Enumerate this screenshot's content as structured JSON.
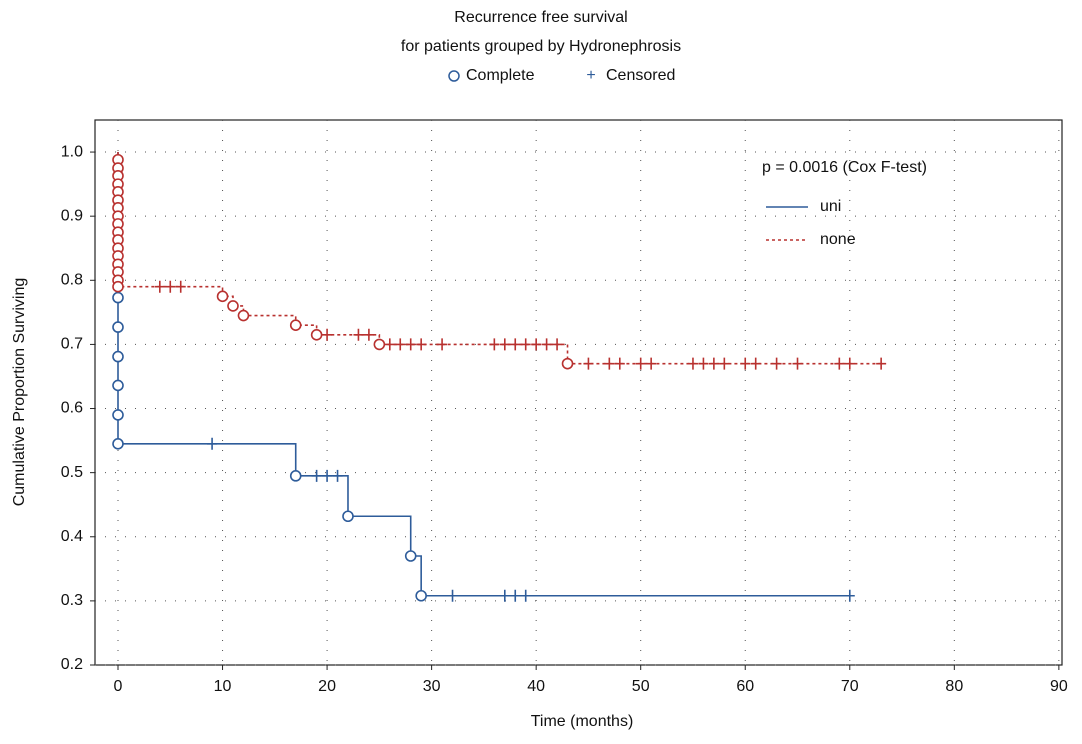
{
  "chart_data": {
    "type": "survival",
    "title": "Recurrence free survival",
    "subtitle": "for patients grouped by Hydronephrosis",
    "marker_legend": [
      "Complete",
      "Censored"
    ],
    "annotation": "p = 0.0016 (Cox F-test)",
    "x_label": "Time (months)",
    "y_label": "Cumulative Proportion Surviving",
    "xlim": [
      -2.2,
      90.3
    ],
    "ylim": [
      0.2,
      1.05
    ],
    "xticks": [
      0,
      10,
      20,
      30,
      40,
      50,
      60,
      70,
      80,
      90
    ],
    "yticks": [
      0.2,
      0.3,
      0.4,
      0.5,
      0.6,
      0.7,
      0.8,
      0.9,
      {
        "value": 1,
        "label": "1.0"
      }
    ],
    "grid": true,
    "series": [
      {
        "name": "uni",
        "color": "#2e5c9a",
        "dash": false,
        "x": [
          0,
          0,
          17,
          17,
          22,
          22,
          28,
          28,
          29,
          29,
          70
        ],
        "values": [
          1.0,
          0.545,
          0.545,
          0.495,
          0.495,
          0.432,
          0.432,
          0.37,
          0.37,
          0.308,
          0.308
        ],
        "complete": {
          "x": [
            0,
            0,
            0,
            0,
            0,
            0,
            17,
            22,
            28,
            29
          ],
          "values": [
            0.773,
            0.727,
            0.681,
            0.636,
            0.59,
            0.545,
            0.495,
            0.432,
            0.37,
            0.308
          ]
        },
        "censored": {
          "x": [
            9,
            19,
            20,
            21,
            32,
            37,
            38,
            39,
            70
          ],
          "values": [
            0.545,
            0.495,
            0.495,
            0.495,
            0.308,
            0.308,
            0.308,
            0.308,
            0.308
          ]
        }
      },
      {
        "name": "none",
        "color": "#b8312f",
        "dash": true,
        "x": [
          0,
          0,
          10,
          10,
          11,
          11,
          12,
          12,
          17,
          17,
          19,
          19,
          25,
          25,
          43,
          43,
          73
        ],
        "values": [
          1.0,
          0.79,
          0.79,
          0.775,
          0.775,
          0.76,
          0.76,
          0.745,
          0.745,
          0.73,
          0.73,
          0.715,
          0.715,
          0.7,
          0.7,
          0.67,
          0.67
        ],
        "complete": {
          "x": [
            0,
            0,
            0,
            0,
            0,
            0,
            0,
            0,
            0,
            0,
            0,
            0,
            0,
            0,
            0,
            0,
            0,
            10,
            11,
            12,
            17,
            19,
            25,
            43
          ],
          "values": [
            0.988,
            0.975,
            0.963,
            0.95,
            0.938,
            0.925,
            0.913,
            0.9,
            0.888,
            0.875,
            0.863,
            0.85,
            0.838,
            0.825,
            0.813,
            0.8,
            0.79,
            0.775,
            0.76,
            0.745,
            0.73,
            0.715,
            0.7,
            0.67
          ]
        },
        "censored": {
          "x": [
            4,
            5,
            6,
            20,
            23,
            24,
            26,
            27,
            28,
            29,
            31,
            36,
            37,
            38,
            39,
            40,
            41,
            42,
            45,
            47,
            48,
            50,
            51,
            55,
            56,
            57,
            58,
            60,
            61,
            63,
            65,
            69,
            70,
            73
          ],
          "values": [
            0.79,
            0.79,
            0.79,
            0.715,
            0.715,
            0.715,
            0.7,
            0.7,
            0.7,
            0.7,
            0.7,
            0.7,
            0.7,
            0.7,
            0.7,
            0.7,
            0.7,
            0.7,
            0.67,
            0.67,
            0.67,
            0.67,
            0.67,
            0.67,
            0.67,
            0.67,
            0.67,
            0.67,
            0.67,
            0.67,
            0.67,
            0.67,
            0.67,
            0.67
          ]
        }
      }
    ]
  }
}
